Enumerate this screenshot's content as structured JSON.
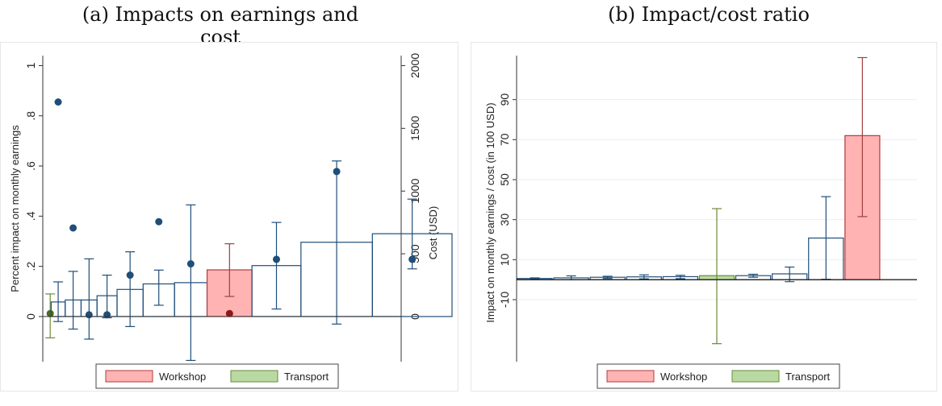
{
  "caption": "",
  "colors": {
    "navy": "#1f4e79",
    "workshop_fill": "#ffb3b3",
    "workshop_stroke": "#b23b3b",
    "workshop_whisker": "#a04040",
    "transport_fill": "#b9d9a3",
    "transport_stroke": "#6b8a3a",
    "grid": "#e8eef2"
  },
  "chart_data": [
    {
      "id": "a",
      "type": "bar",
      "title": "(a) Impacts on earnings and cost",
      "ylabel": "Percent impact on monthly earnings",
      "y2label": "Cost (USD)",
      "ylim": [
        -0.18,
        1.04
      ],
      "y2lim": [
        -360,
        2080
      ],
      "yticks": [
        {
          "v": 0,
          "label": "0"
        },
        {
          "v": 0.2,
          "label": ".2"
        },
        {
          "v": 0.4,
          "label": ".4"
        },
        {
          "v": 0.6,
          "label": ".6"
        },
        {
          "v": 0.8,
          "label": ".8"
        },
        {
          "v": 1,
          "label": "1"
        }
      ],
      "y2ticks": [
        {
          "v": 0,
          "label": "0"
        },
        {
          "v": 500,
          "label": "500"
        },
        {
          "v": 1000,
          "label": "1000"
        },
        {
          "v": 1500,
          "label": "1500"
        },
        {
          "v": 2000,
          "label": "2000"
        }
      ],
      "grid": false,
      "legend": [
        {
          "label": "Workshop",
          "key": "workshop"
        },
        {
          "label": "Transport",
          "key": "transport"
        }
      ],
      "programs": [
        {
          "cost": 0.008,
          "impact": 0.012,
          "lo": -0.085,
          "hi": 0.09,
          "type": "transport"
        },
        {
          "cost": 0.058,
          "impact": 0.855,
          "lo": -0.02,
          "hi": 0.138,
          "type": "other"
        },
        {
          "cost": 0.066,
          "impact": 0.353,
          "lo": -0.05,
          "hi": 0.18,
          "type": "other"
        },
        {
          "cost": 0.066,
          "impact": 0.007,
          "lo": -0.09,
          "hi": 0.23,
          "type": "other"
        },
        {
          "cost": 0.083,
          "impact": 0.007,
          "lo": -0.005,
          "hi": 0.165,
          "type": "other"
        },
        {
          "cost": 0.108,
          "impact": 0.165,
          "lo": -0.04,
          "hi": 0.258,
          "type": "other"
        },
        {
          "cost": 0.13,
          "impact": 0.378,
          "lo": 0.045,
          "hi": 0.185,
          "type": "other"
        },
        {
          "cost": 0.135,
          "impact": 0.21,
          "lo": -0.175,
          "hi": 0.445,
          "type": "other"
        },
        {
          "cost": 0.186,
          "impact": 0.012,
          "lo": 0.08,
          "hi": 0.29,
          "type": "workshop"
        },
        {
          "cost": 0.203,
          "impact": 0.228,
          "lo": 0.03,
          "hi": 0.375,
          "type": "other"
        },
        {
          "cost": 0.296,
          "impact": 0.578,
          "lo": -0.03,
          "hi": 0.62,
          "type": "other"
        },
        {
          "cost": 0.33,
          "impact": 0.228,
          "lo": 0.19,
          "hi": 0.468,
          "type": "other"
        }
      ]
    },
    {
      "id": "b",
      "type": "bar",
      "title": "(b) Impact/cost ratio",
      "ylabel": "Impact on monthly earnings / cost (in 100 USD)",
      "ylim": [
        -41,
        112
      ],
      "yticks": [
        {
          "v": -10,
          "label": "-10"
        },
        {
          "v": 10,
          "label": "10"
        },
        {
          "v": 30,
          "label": "30"
        },
        {
          "v": 50,
          "label": "50"
        },
        {
          "v": 70,
          "label": "70"
        },
        {
          "v": 90,
          "label": "90"
        }
      ],
      "grid": true,
      "legend": [
        {
          "label": "Workshop",
          "key": "workshop"
        },
        {
          "label": "Transport",
          "key": "transport"
        }
      ],
      "programs": [
        {
          "value": 0.6,
          "lo": 0.2,
          "hi": 0.9,
          "type": "other"
        },
        {
          "value": 0.9,
          "lo": 0.0,
          "hi": 1.9,
          "type": "other"
        },
        {
          "value": 1.2,
          "lo": 0.6,
          "hi": 1.7,
          "type": "other"
        },
        {
          "value": 1.4,
          "lo": 0.4,
          "hi": 2.4,
          "type": "other"
        },
        {
          "value": 1.5,
          "lo": 0.5,
          "hi": 2.2,
          "type": "other"
        },
        {
          "value": 2.0,
          "lo": -32,
          "hi": 35.5,
          "type": "transport"
        },
        {
          "value": 2.0,
          "lo": 1.2,
          "hi": 2.7,
          "type": "other"
        },
        {
          "value": 2.9,
          "lo": -1.0,
          "hi": 6.3,
          "type": "other"
        },
        {
          "value": 20.8,
          "lo": 0.2,
          "hi": 41.5,
          "type": "other"
        },
        {
          "value": 72.0,
          "lo": 31.5,
          "hi": 111,
          "type": "workshop"
        },
        {
          "value": 0.0,
          "lo": 0,
          "hi": 0,
          "type": "other"
        }
      ]
    }
  ]
}
